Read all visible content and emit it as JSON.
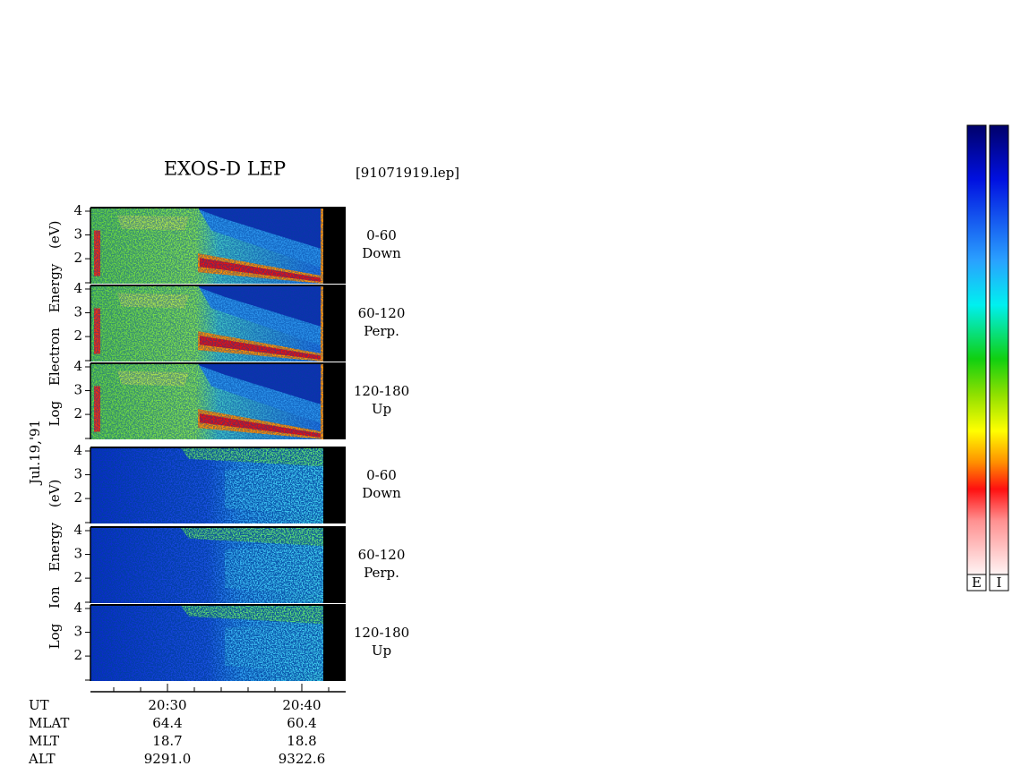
{
  "chart_data": {
    "type": "spectrogram",
    "title": "EXOS-D LEP",
    "file": "[91071919.lep]",
    "date": "Jul.19,'91",
    "ylim": [
      0.95,
      4.15
    ],
    "yticks": [
      2,
      3,
      4
    ],
    "xlim": [
      "20:24:16",
      "20:43:16"
    ],
    "xticks": [
      "20:30",
      "20:40"
    ],
    "xminor": [
      "20:26",
      "20:28",
      "20:32",
      "20:34",
      "20:36",
      "20:38",
      "20:42"
    ],
    "groups": [
      {
        "kind": "electron",
        "ylabel": "Log Electron Energy (eV)",
        "panels": [
          {
            "labels": [
              "0-60",
              "Down"
            ]
          },
          {
            "labels": [
              "60-120",
              "Perp."
            ]
          },
          {
            "labels": [
              "120-180",
              "Up"
            ]
          }
        ]
      },
      {
        "kind": "ion",
        "ylabel": "Log Ion Energy (eV)",
        "panels": [
          {
            "labels": [
              "0-60",
              "Down"
            ]
          },
          {
            "labels": [
              "60-120",
              "Perp."
            ]
          },
          {
            "labels": [
              "120-180",
              "Up"
            ]
          }
        ]
      }
    ],
    "footer": [
      [
        "UT",
        "20:30",
        "20:40"
      ],
      [
        "MLAT",
        "64.4",
        "60.4"
      ],
      [
        "MLT",
        "18.7",
        "18.8"
      ],
      [
        "ALT",
        "9291.0",
        "9322.6"
      ]
    ],
    "colorbars": [
      "E",
      "I"
    ]
  }
}
